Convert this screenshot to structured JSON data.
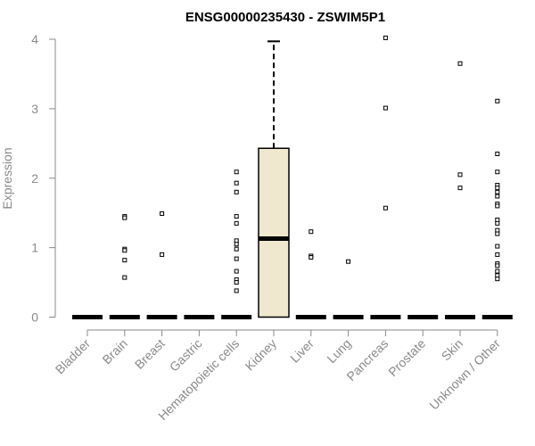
{
  "chart_data": {
    "type": "box",
    "title": "ENSG00000235430 - ZSWIM5P1",
    "xlabel": "",
    "ylabel": "Expression",
    "ylim": [
      0,
      4
    ],
    "yticks": [
      "0",
      "1",
      "2",
      "3",
      "4"
    ],
    "categories": [
      "Bladder",
      "Brain",
      "Breast",
      "Gastric",
      "Hematopoietic cells",
      "Kidney",
      "Liver",
      "Lung",
      "Pancreas",
      "Prostate",
      "Skin",
      "Unknown / Other"
    ],
    "box_fill": "#efe8cf",
    "boxes": [
      {
        "category": "Bladder",
        "q1": 0,
        "median": 0,
        "q3": 0,
        "whisker_low": 0,
        "whisker_high": 0,
        "outliers": []
      },
      {
        "category": "Brain",
        "q1": 0,
        "median": 0,
        "q3": 0,
        "whisker_low": 0,
        "whisker_high": 0,
        "outliers": [
          1.45,
          1.43,
          0.98,
          0.96,
          0.82,
          0.57
        ]
      },
      {
        "category": "Breast",
        "q1": 0,
        "median": 0,
        "q3": 0,
        "whisker_low": 0,
        "whisker_high": 0,
        "outliers": [
          1.49,
          0.9
        ]
      },
      {
        "category": "Gastric",
        "q1": 0,
        "median": 0,
        "q3": 0,
        "whisker_low": 0,
        "whisker_high": 0,
        "outliers": []
      },
      {
        "category": "Hematopoietic cells",
        "q1": 0,
        "median": 0,
        "q3": 0,
        "whisker_low": 0,
        "whisker_high": 0,
        "outliers": [
          2.09,
          1.93,
          1.8,
          1.45,
          1.35,
          1.1,
          1.05,
          0.98,
          0.84,
          0.66,
          0.54,
          0.5,
          0.38
        ]
      },
      {
        "category": "Kidney",
        "q1": 0,
        "median": 1.13,
        "q3": 2.43,
        "whisker_low": 0,
        "whisker_high": 3.97,
        "outliers": []
      },
      {
        "category": "Liver",
        "q1": 0,
        "median": 0,
        "q3": 0,
        "whisker_low": 0,
        "whisker_high": 0,
        "outliers": [
          1.23,
          0.88,
          0.86
        ]
      },
      {
        "category": "Lung",
        "q1": 0,
        "median": 0,
        "q3": 0,
        "whisker_low": 0,
        "whisker_high": 0,
        "outliers": [
          0.8
        ]
      },
      {
        "category": "Pancreas",
        "q1": 0,
        "median": 0,
        "q3": 0,
        "whisker_low": 0,
        "whisker_high": 0,
        "outliers": [
          4.02,
          3.01,
          1.57
        ]
      },
      {
        "category": "Prostate",
        "q1": 0,
        "median": 0,
        "q3": 0,
        "whisker_low": 0,
        "whisker_high": 0,
        "outliers": []
      },
      {
        "category": "Skin",
        "q1": 0,
        "median": 0,
        "q3": 0,
        "whisker_low": 0,
        "whisker_high": 0,
        "outliers": [
          3.65,
          2.05,
          1.86
        ]
      },
      {
        "category": "Unknown / Other",
        "q1": 0,
        "median": 0,
        "q3": 0,
        "whisker_low": 0,
        "whisker_high": 0,
        "outliers": [
          3.11,
          2.35,
          2.09,
          1.9,
          1.86,
          1.8,
          1.74,
          1.63,
          1.6,
          1.4,
          1.35,
          1.25,
          1.2,
          1.02,
          0.9,
          0.77,
          0.74,
          0.66,
          0.6,
          0.55
        ]
      }
    ]
  }
}
